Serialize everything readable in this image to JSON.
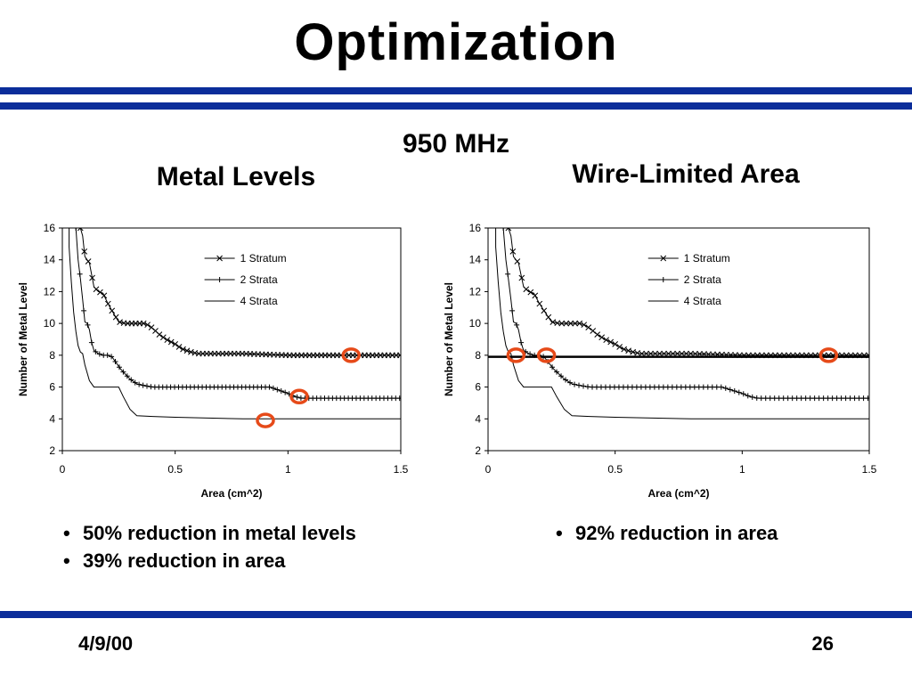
{
  "slide": {
    "title": "Optimization",
    "subtitle": "950 MHz",
    "footer_date": "4/9/00",
    "page_number": "26",
    "accent_color": "#0b2d9a",
    "highlight_color": "#e64a19"
  },
  "chart_data": [
    {
      "type": "line",
      "title": "Metal Levels",
      "xlabel": "Area (cm^2)",
      "ylabel": "Number of Metal Level",
      "xlim": [
        0,
        1.5
      ],
      "ylim": [
        2,
        16
      ],
      "xticks": [
        "0",
        "0.5",
        "1",
        "1.5"
      ],
      "yticks": [
        "2",
        "4",
        "6",
        "8",
        "10",
        "12",
        "14",
        "16"
      ],
      "legend_position": "top-right",
      "series": [
        {
          "name": "1 Stratum",
          "marker": "x",
          "x": [
            0.08,
            0.09,
            0.1,
            0.12,
            0.14,
            0.16,
            0.18,
            0.2,
            0.22,
            0.25,
            0.28,
            0.3,
            0.33,
            0.36,
            0.38,
            0.4,
            0.43,
            0.46,
            0.5,
            0.53,
            0.57,
            0.6,
            0.65,
            0.7,
            0.8,
            1.0,
            1.2,
            1.5
          ],
          "y": [
            16,
            15.5,
            14.2,
            13.8,
            12.3,
            12.0,
            11.9,
            11.3,
            10.8,
            10.1,
            10.0,
            10.0,
            10.0,
            10.0,
            9.9,
            9.7,
            9.3,
            9.0,
            8.7,
            8.4,
            8.2,
            8.1,
            8.1,
            8.1,
            8.1,
            8.0,
            8.0,
            8.0
          ]
        },
        {
          "name": "2 Strata",
          "marker": "+",
          "x": [
            0.06,
            0.07,
            0.08,
            0.09,
            0.1,
            0.11,
            0.12,
            0.13,
            0.14,
            0.16,
            0.18,
            0.2,
            0.22,
            0.24,
            0.26,
            0.28,
            0.3,
            0.33,
            0.36,
            0.4,
            0.5,
            0.7,
            0.92,
            0.96,
            1.0,
            1.03,
            1.06,
            1.1,
            1.5
          ],
          "y": [
            16,
            14.0,
            12.8,
            11.5,
            10.1,
            10.0,
            9.6,
            8.8,
            8.3,
            8.1,
            8.0,
            8.0,
            7.9,
            7.5,
            7.1,
            6.8,
            6.5,
            6.2,
            6.1,
            6.0,
            6.0,
            6.0,
            6.0,
            5.8,
            5.6,
            5.4,
            5.3,
            5.3,
            5.3
          ]
        },
        {
          "name": "4 Strata",
          "marker": "none",
          "x": [
            0.03,
            0.04,
            0.05,
            0.06,
            0.07,
            0.08,
            0.09,
            0.1,
            0.12,
            0.14,
            0.25,
            0.27,
            0.3,
            0.33,
            0.4,
            0.5,
            0.8,
            1.0,
            1.5
          ],
          "y": [
            14.8,
            12.6,
            10.7,
            9.5,
            8.6,
            8.2,
            8.1,
            7.4,
            6.4,
            6.0,
            6.0,
            5.4,
            4.6,
            4.2,
            4.15,
            4.1,
            4.0,
            4.0,
            4.0
          ]
        }
      ],
      "highlights": [
        {
          "x": 1.28,
          "y": 8.0
        },
        {
          "x": 1.05,
          "y": 5.4
        },
        {
          "x": 0.9,
          "y": 3.9
        }
      ]
    },
    {
      "type": "line",
      "title": "Wire-Limited Area",
      "xlabel": "Area (cm^2)",
      "ylabel": "Number of Metal Level",
      "xlim": [
        0,
        1.5
      ],
      "ylim": [
        2,
        16
      ],
      "xticks": [
        "0",
        "0.5",
        "1",
        "1.5"
      ],
      "yticks": [
        "2",
        "4",
        "6",
        "8",
        "10",
        "12",
        "14",
        "16"
      ],
      "legend_position": "top-right",
      "reference_line_y": 7.9,
      "series": [
        {
          "name": "1 Stratum",
          "marker": "x",
          "x": [
            0.08,
            0.09,
            0.1,
            0.12,
            0.14,
            0.16,
            0.18,
            0.2,
            0.22,
            0.25,
            0.28,
            0.3,
            0.33,
            0.36,
            0.38,
            0.4,
            0.43,
            0.46,
            0.5,
            0.53,
            0.57,
            0.6,
            0.65,
            0.7,
            0.8,
            1.0,
            1.2,
            1.5
          ],
          "y": [
            16,
            15.5,
            14.2,
            13.8,
            12.3,
            12.0,
            11.9,
            11.3,
            10.8,
            10.1,
            10.0,
            10.0,
            10.0,
            10.0,
            9.9,
            9.7,
            9.3,
            9.0,
            8.7,
            8.4,
            8.2,
            8.1,
            8.1,
            8.1,
            8.1,
            8.0,
            8.0,
            8.0
          ]
        },
        {
          "name": "2 Strata",
          "marker": "+",
          "x": [
            0.06,
            0.07,
            0.08,
            0.09,
            0.1,
            0.11,
            0.12,
            0.13,
            0.14,
            0.16,
            0.18,
            0.2,
            0.22,
            0.24,
            0.26,
            0.28,
            0.3,
            0.33,
            0.36,
            0.4,
            0.5,
            0.7,
            0.92,
            0.96,
            1.0,
            1.03,
            1.06,
            1.1,
            1.5
          ],
          "y": [
            16,
            14.0,
            12.8,
            11.5,
            10.1,
            10.0,
            9.6,
            8.8,
            8.3,
            8.1,
            8.0,
            8.0,
            7.9,
            7.5,
            7.1,
            6.8,
            6.5,
            6.2,
            6.1,
            6.0,
            6.0,
            6.0,
            6.0,
            5.8,
            5.6,
            5.4,
            5.3,
            5.3,
            5.3
          ]
        },
        {
          "name": "4 Strata",
          "marker": "none",
          "x": [
            0.03,
            0.04,
            0.05,
            0.06,
            0.07,
            0.08,
            0.09,
            0.1,
            0.12,
            0.14,
            0.25,
            0.27,
            0.3,
            0.33,
            0.4,
            0.5,
            0.8,
            1.0,
            1.5
          ],
          "y": [
            14.8,
            12.6,
            10.7,
            9.5,
            8.6,
            8.2,
            8.1,
            7.4,
            6.4,
            6.0,
            6.0,
            5.4,
            4.6,
            4.2,
            4.15,
            4.1,
            4.0,
            4.0,
            4.0
          ]
        }
      ],
      "highlights": [
        {
          "x": 0.11,
          "y": 8.0
        },
        {
          "x": 0.23,
          "y": 8.0
        },
        {
          "x": 1.34,
          "y": 8.0
        }
      ]
    }
  ],
  "bullets_left": [
    "50% reduction in metal levels",
    "39% reduction in area"
  ],
  "bullets_right": [
    "92% reduction in area"
  ]
}
